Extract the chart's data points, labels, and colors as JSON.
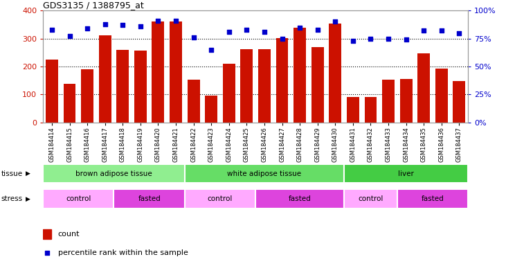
{
  "title": "GDS3135 / 1388795_at",
  "samples": [
    "GSM184414",
    "GSM184415",
    "GSM184416",
    "GSM184417",
    "GSM184418",
    "GSM184419",
    "GSM184420",
    "GSM184421",
    "GSM184422",
    "GSM184423",
    "GSM184424",
    "GSM184425",
    "GSM184426",
    "GSM184427",
    "GSM184428",
    "GSM184429",
    "GSM184430",
    "GSM184431",
    "GSM184432",
    "GSM184433",
    "GSM184434",
    "GSM184435",
    "GSM184436",
    "GSM184437"
  ],
  "counts": [
    225,
    138,
    190,
    312,
    260,
    258,
    360,
    360,
    152,
    95,
    210,
    263,
    263,
    302,
    340,
    270,
    355,
    90,
    90,
    152,
    155,
    247,
    193,
    148
  ],
  "percentiles": [
    83,
    77,
    84,
    88,
    87,
    86,
    91,
    91,
    76,
    65,
    81,
    83,
    81,
    75,
    85,
    83,
    90,
    73,
    75,
    75,
    74,
    82,
    82,
    80
  ],
  "tissue_groups": [
    {
      "label": "brown adipose tissue",
      "start": 0,
      "end": 7,
      "color": "#90ee90"
    },
    {
      "label": "white adipose tissue",
      "start": 8,
      "end": 16,
      "color": "#66dd66"
    },
    {
      "label": "liver",
      "start": 17,
      "end": 23,
      "color": "#44cc44"
    }
  ],
  "stress_groups": [
    {
      "label": "control",
      "start": 0,
      "end": 3,
      "color": "#ffaaff"
    },
    {
      "label": "fasted",
      "start": 4,
      "end": 7,
      "color": "#dd44dd"
    },
    {
      "label": "control",
      "start": 8,
      "end": 11,
      "color": "#ffaaff"
    },
    {
      "label": "fasted",
      "start": 12,
      "end": 16,
      "color": "#dd44dd"
    },
    {
      "label": "control",
      "start": 17,
      "end": 19,
      "color": "#ffaaff"
    },
    {
      "label": "fasted",
      "start": 20,
      "end": 23,
      "color": "#dd44dd"
    }
  ],
  "bar_color": "#cc1100",
  "dot_color": "#0000cc",
  "left_ylim": [
    0,
    400
  ],
  "right_ylim": [
    0,
    100
  ],
  "left_yticks": [
    0,
    100,
    200,
    300,
    400
  ],
  "right_yticks": [
    0,
    25,
    50,
    75,
    100
  ],
  "right_yticklabels": [
    "0%",
    "25%",
    "50%",
    "75%",
    "100%"
  ],
  "bg_color": "#ffffff"
}
